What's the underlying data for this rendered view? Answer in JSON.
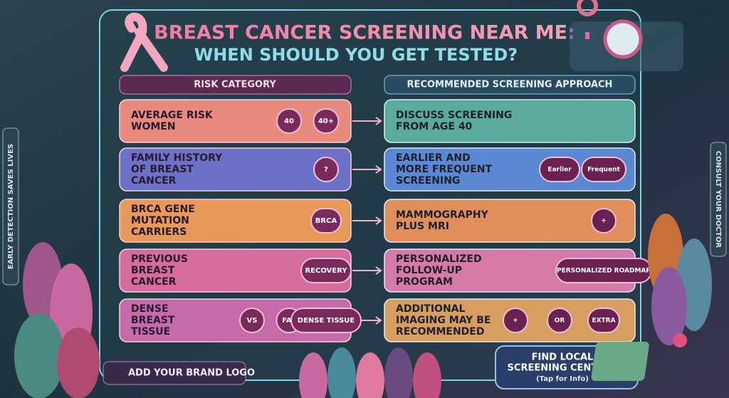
{
  "header": {
    "title": "BREAST CANCER SCREENING NEAR ME:",
    "subtitle": "WHEN SHOULD YOU GET TESTED?"
  },
  "side_left": "EARLY DETECTION SAVES LIVES",
  "side_right": "CONSULT YOUR DOCTOR",
  "columns": [
    "RISK CATEGORY",
    "RECOMMENDED SCREENING APPROACH"
  ],
  "rows": [
    {
      "category": [
        "AVERAGE RISK",
        "WOMEN"
      ],
      "category_badges": [
        "40",
        "40+"
      ],
      "approach": [
        "DISCUSS SCREENING",
        "FROM AGE 40"
      ]
    },
    {
      "category": [
        "FAMILY HISTORY",
        "OF BREAST",
        "CANCER"
      ],
      "category_badges": [
        "?"
      ],
      "approach": [
        "EARLIER AND",
        "MORE FREQUENT",
        "SCREENING"
      ],
      "approach_badges": [
        "Earlier",
        "Frequent"
      ]
    },
    {
      "category": [
        "BRCA GENE",
        "MUTATION",
        "CARRIERS"
      ],
      "category_badges": [
        "BRCA"
      ],
      "approach": [
        "MAMMOGRAPHY",
        "PLUS MRI"
      ],
      "approach_badges": [
        "+"
      ]
    },
    {
      "category": [
        "PREVIOUS",
        "BREAST",
        "CANCER"
      ],
      "category_badges": [
        "RECOVERY"
      ],
      "approach": [
        "PERSONALIZED",
        "FOLLOW-UP",
        "PROGRAM"
      ],
      "approach_badges": [
        "PERSONALIZED ROADMAP"
      ]
    },
    {
      "category": [
        "DENSE",
        "BREAST",
        "TISSUE"
      ],
      "category_badges": [
        "VS",
        "FAT",
        "DENSE TISSUE"
      ],
      "approach": [
        "ADDITIONAL",
        "IMAGING MAY BE",
        "RECOMMENDED"
      ],
      "approach_badges": [
        "+",
        "OR",
        "EXTRA"
      ]
    }
  ],
  "brand": "ADD YOUR BRAND LOGO",
  "cta": {
    "title": [
      "FIND LOCAL",
      "SCREENING CENTERS"
    ],
    "note": "(Tap for Info)"
  }
}
